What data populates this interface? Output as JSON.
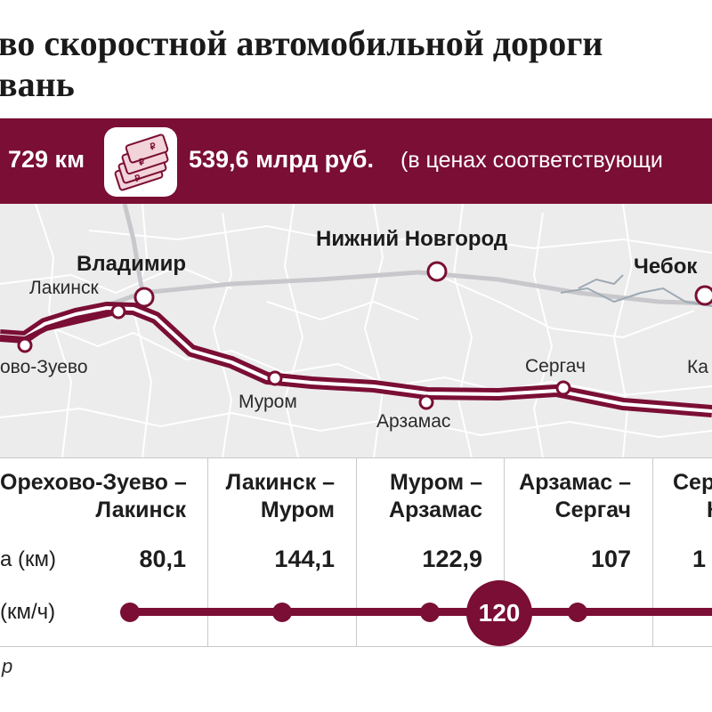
{
  "title": {
    "line1": "во скоростной автомобильной дороги",
    "line2": "вань"
  },
  "banner": {
    "length": "729 км",
    "cost": "539,6 млрд руб.",
    "cost_note": "(в ценах соответствующи",
    "money_icon": "banknotes-icon"
  },
  "map": {
    "cities": {
      "vladimir": "Владимир",
      "lakinsk": "Лакинск",
      "orekhovo": "ово-Зуево",
      "nizhny": "Нижний Новгород",
      "cheboksary": "Чебок",
      "murom": "Муром",
      "arzamas": "Арзамас",
      "sergach": "Сергач",
      "kazan_partial": "Ка"
    },
    "colors": {
      "route": "#7a0e34",
      "background": "#ececec",
      "roads": "#ffffff"
    }
  },
  "table": {
    "row_labels": {
      "length": "а (км)",
      "speed": "(км/ч)"
    },
    "segments": [
      {
        "from": "Орехово-Зуево –",
        "to": "Лакинск",
        "length": "80,1"
      },
      {
        "from": "Лакинск –",
        "to": "Муром",
        "length": "144,1"
      },
      {
        "from": "Муром –",
        "to": "Арзамас",
        "length": "122,9"
      },
      {
        "from": "Арзамас –",
        "to": "Сергач",
        "length": "107"
      },
      {
        "from": "Сер",
        "to": "Ка",
        "length": "1"
      }
    ],
    "speed_limit": "120"
  },
  "source": "р"
}
